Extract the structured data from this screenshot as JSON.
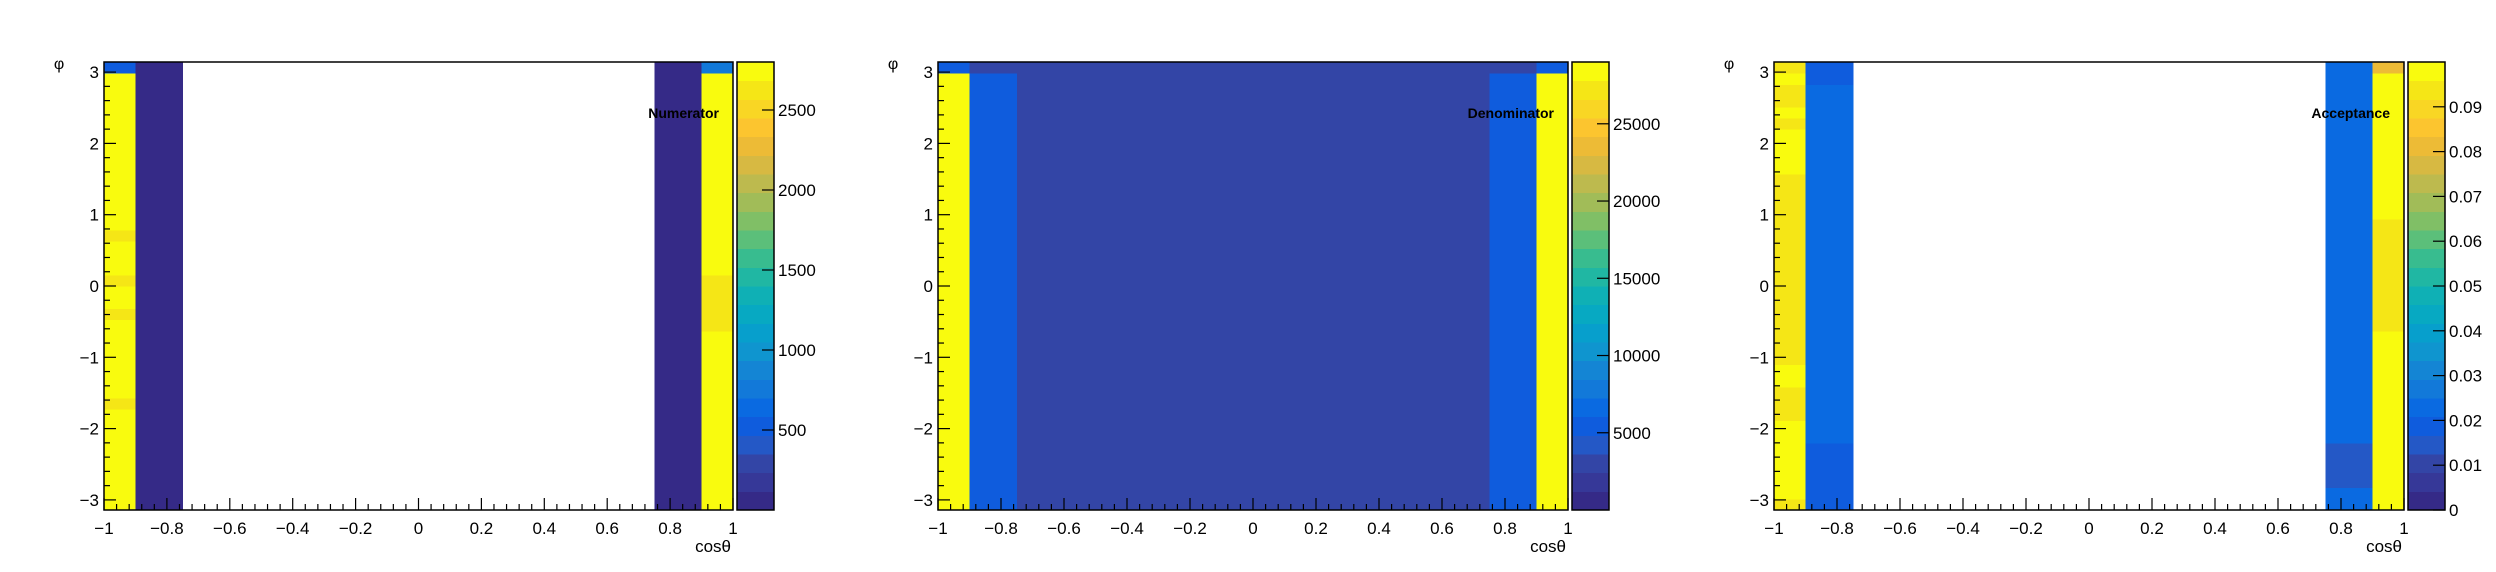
{
  "palette": [
    "#352a87",
    "#363898",
    "#3345a6",
    "#2458c6",
    "#0f5cdd",
    "#0a6ae1",
    "#1279d9",
    "#1485d4",
    "#0f95cf",
    "#079fcc",
    "#07a9c2",
    "#0fb0b5",
    "#20b7a3",
    "#38bc8f",
    "#5bbf7a",
    "#80bf66",
    "#a1bc58",
    "#bdba4e",
    "#d7b942",
    "#edbb36",
    "#fcc52f",
    "#f9d624",
    "#f5e616",
    "#f9fb0e"
  ],
  "chart_data": [
    {
      "type": "heatmap",
      "title": "Numerator",
      "xlabel": "cosθ",
      "ylabel": "φ",
      "xlim": [
        -1,
        1
      ],
      "ylim": [
        -3.14159,
        3.14159
      ],
      "x_ticks": [
        "−1",
        "−0.8",
        "−0.6",
        "−0.4",
        "−0.2",
        "0",
        "0.2",
        "0.4",
        "0.6",
        "0.8",
        "1"
      ],
      "y_ticks": [
        "−3",
        "−2",
        "−1",
        "0",
        "1",
        "2",
        "3"
      ],
      "z_range": [
        0,
        2800
      ],
      "z_ticks": [
        {
          "v": 500,
          "label": "500"
        },
        {
          "v": 1000,
          "label": "1000"
        },
        {
          "v": 1500,
          "label": "1500"
        },
        {
          "v": 2000,
          "label": "2000"
        },
        {
          "v": 2500,
          "label": "2500"
        }
      ],
      "columns": [
        {
          "x0": -1.0,
          "x1": -0.9,
          "values": [
            2700,
            2800,
            2800,
            2800,
            2700,
            2700,
            2800,
            2700,
            2700,
            2600,
            2700,
            2700,
            2700,
            2700,
            2700,
            2700,
            2700,
            2600,
            2700,
            2700,
            2650,
            2700,
            2700,
            2700,
            2600,
            2700,
            2700,
            2700,
            2700,
            2700,
            2800,
            2800,
            2800,
            2750,
            2700,
            2800,
            2700,
            2750,
            2800,
            500
          ]
        },
        {
          "x0": -0.9,
          "x1": -0.75,
          "values": [
            100,
            100,
            100,
            100,
            100,
            100,
            100,
            100,
            100,
            100,
            100,
            100,
            100,
            100,
            100,
            100,
            100,
            100,
            100,
            100,
            100,
            100,
            100,
            100,
            100,
            100,
            100,
            100,
            100,
            100,
            100,
            100,
            100,
            100,
            100,
            100,
            100,
            100,
            100,
            100
          ]
        },
        {
          "x0": 0.75,
          "x1": 0.9,
          "values": [
            100,
            100,
            100,
            100,
            100,
            100,
            100,
            100,
            100,
            100,
            100,
            100,
            100,
            100,
            100,
            100,
            100,
            100,
            100,
            100,
            100,
            100,
            100,
            100,
            100,
            100,
            100,
            100,
            100,
            100,
            100,
            100,
            100,
            100,
            100,
            100,
            100,
            100,
            100,
            100
          ]
        },
        {
          "x0": 0.9,
          "x1": 1.0,
          "values": [
            2800,
            2800,
            2800,
            2800,
            2800,
            2800,
            2800,
            2800,
            2800,
            2800,
            2800,
            2800,
            2800,
            2800,
            2800,
            2800,
            2650,
            2650,
            2650,
            2650,
            2650,
            2700,
            2700,
            2700,
            2800,
            2800,
            2800,
            2800,
            2800,
            2800,
            2800,
            2800,
            2800,
            2800,
            2800,
            2800,
            2800,
            2800,
            2800,
            700
          ]
        }
      ]
    },
    {
      "type": "heatmap",
      "title": "Denominator",
      "xlabel": "cosθ",
      "ylabel": "φ",
      "xlim": [
        -1,
        1
      ],
      "ylim": [
        -3.14159,
        3.14159
      ],
      "x_ticks": [
        "−1",
        "−0.8",
        "−0.6",
        "−0.4",
        "−0.2",
        "0",
        "0.2",
        "0.4",
        "0.6",
        "0.8",
        "1"
      ],
      "y_ticks": [
        "−3",
        "−2",
        "−1",
        "0",
        "1",
        "2",
        "3"
      ],
      "z_range": [
        0,
        29000
      ],
      "z_ticks": [
        {
          "v": 5000,
          "label": "5000"
        },
        {
          "v": 10000,
          "label": "10000"
        },
        {
          "v": 15000,
          "label": "15000"
        },
        {
          "v": 20000,
          "label": "20000"
        },
        {
          "v": 25000,
          "label": "25000"
        }
      ],
      "columns": [
        {
          "x0": -1.0,
          "x1": -0.9,
          "values": [
            29000,
            29000,
            29000,
            29000,
            29000,
            29000,
            29000,
            29000,
            29000,
            29000,
            29000,
            29000,
            29000,
            29000,
            29000,
            29000,
            29000,
            29000,
            29000,
            29000,
            29000,
            29000,
            29000,
            29000,
            29000,
            29000,
            29000,
            29000,
            29000,
            29000,
            29000,
            29000,
            29000,
            29000,
            29000,
            29000,
            29000,
            29000,
            29000,
            6000
          ]
        },
        {
          "x0": -0.9,
          "x1": -0.75,
          "values": [
            6000,
            6000,
            6000,
            6000,
            6000,
            6000,
            6000,
            6000,
            6000,
            6000,
            6000,
            6000,
            6000,
            6000,
            6000,
            6000,
            6000,
            6000,
            6000,
            6000,
            6000,
            6000,
            6000,
            6000,
            6000,
            6000,
            6000,
            6000,
            6000,
            6000,
            6000,
            6000,
            6000,
            6000,
            6000,
            6000,
            6000,
            6000,
            6000,
            2500
          ]
        },
        {
          "x0": -0.75,
          "x1": 0.75,
          "values": [
            2500,
            2500,
            2500,
            2500,
            2500,
            2500,
            2500,
            2500,
            2500,
            2500,
            2500,
            2500,
            2500,
            2500,
            2500,
            2500,
            2500,
            2500,
            2500,
            2500,
            2500,
            2500,
            2500,
            2500,
            2500,
            2500,
            2500,
            2500,
            2500,
            2500,
            2500,
            2500,
            2500,
            2500,
            2500,
            2500,
            2500,
            2500,
            2500,
            2500
          ]
        },
        {
          "x0": 0.75,
          "x1": 0.9,
          "values": [
            6000,
            6000,
            6000,
            6000,
            6000,
            6000,
            6000,
            6000,
            6000,
            6000,
            6000,
            6000,
            6000,
            6000,
            6000,
            6000,
            6000,
            6000,
            6000,
            6000,
            6000,
            6000,
            6000,
            6000,
            6000,
            6000,
            6000,
            6000,
            6000,
            6000,
            6000,
            6000,
            6000,
            6000,
            6000,
            6000,
            6000,
            6000,
            6000,
            2500
          ]
        },
        {
          "x0": 0.9,
          "x1": 1.0,
          "values": [
            29000,
            29000,
            29000,
            29000,
            29000,
            29000,
            29000,
            29000,
            29000,
            29000,
            29000,
            29000,
            29000,
            29000,
            29000,
            29000,
            29000,
            29000,
            29000,
            29000,
            29000,
            29000,
            29000,
            29000,
            29000,
            29000,
            29000,
            29000,
            29000,
            29000,
            29000,
            29000,
            29000,
            29000,
            29000,
            29000,
            29000,
            29000,
            29000,
            6000
          ]
        }
      ]
    },
    {
      "type": "heatmap",
      "title": "Acceptance",
      "xlabel": "cosθ",
      "ylabel": "φ",
      "xlim": [
        -1,
        1
      ],
      "ylim": [
        -3.14159,
        3.14159
      ],
      "x_ticks": [
        "−1",
        "−0.8",
        "−0.6",
        "−0.4",
        "−0.2",
        "0",
        "0.2",
        "0.4",
        "0.6",
        "0.8",
        "1"
      ],
      "y_ticks": [
        "−3",
        "−2",
        "−1",
        "0",
        "1",
        "2",
        "3"
      ],
      "z_range": [
        0,
        0.1
      ],
      "z_ticks": [
        {
          "v": 0,
          "label": "0"
        },
        {
          "v": 0.01,
          "label": "0.01"
        },
        {
          "v": 0.02,
          "label": "0.02"
        },
        {
          "v": 0.03,
          "label": "0.03"
        },
        {
          "v": 0.04,
          "label": "0.04"
        },
        {
          "v": 0.05,
          "label": "0.05"
        },
        {
          "v": 0.06,
          "label": "0.06"
        },
        {
          "v": 0.07,
          "label": "0.07"
        },
        {
          "v": 0.08,
          "label": "0.08"
        },
        {
          "v": 0.09,
          "label": "0.09"
        }
      ],
      "columns": [
        {
          "x0": -1.0,
          "x1": -0.9,
          "values": [
            0.095,
            0.097,
            0.097,
            0.097,
            0.096,
            0.096,
            0.097,
            0.096,
            0.095,
            0.094,
            0.095,
            0.096,
            0.096,
            0.095,
            0.095,
            0.095,
            0.094,
            0.093,
            0.094,
            0.094,
            0.094,
            0.094,
            0.094,
            0.094,
            0.093,
            0.094,
            0.094,
            0.094,
            0.095,
            0.095,
            0.096,
            0.096,
            0.096,
            0.096,
            0.095,
            0.096,
            0.095,
            0.095,
            0.096,
            0.095
          ]
        },
        {
          "x0": -0.9,
          "x1": -0.75,
          "values": [
            0.02,
            0.02,
            0.02,
            0.02,
            0.02,
            0.02,
            0.022,
            0.022,
            0.022,
            0.022,
            0.022,
            0.022,
            0.024,
            0.024,
            0.024,
            0.024,
            0.022,
            0.022,
            0.022,
            0.022,
            0.024,
            0.024,
            0.024,
            0.024,
            0.022,
            0.022,
            0.022,
            0.022,
            0.024,
            0.024,
            0.024,
            0.024,
            0.022,
            0.022,
            0.022,
            0.022,
            0.022,
            0.022,
            0.02,
            0.02
          ]
        },
        {
          "x0": 0.75,
          "x1": 0.9,
          "values": [
            0.024,
            0.024,
            0.016,
            0.016,
            0.016,
            0.016,
            0.024,
            0.024,
            0.024,
            0.024,
            0.024,
            0.024,
            0.024,
            0.024,
            0.024,
            0.024,
            0.024,
            0.024,
            0.024,
            0.024,
            0.024,
            0.024,
            0.024,
            0.024,
            0.024,
            0.024,
            0.024,
            0.024,
            0.024,
            0.024,
            0.024,
            0.024,
            0.024,
            0.024,
            0.024,
            0.024,
            0.024,
            0.024,
            0.024,
            0.024
          ]
        },
        {
          "x0": 0.9,
          "x1": 1.0,
          "values": [
            0.099,
            0.099,
            0.099,
            0.099,
            0.099,
            0.099,
            0.099,
            0.099,
            0.099,
            0.099,
            0.099,
            0.099,
            0.099,
            0.099,
            0.099,
            0.099,
            0.094,
            0.094,
            0.094,
            0.094,
            0.094,
            0.094,
            0.094,
            0.094,
            0.094,
            0.094,
            0.099,
            0.099,
            0.099,
            0.099,
            0.099,
            0.099,
            0.099,
            0.099,
            0.099,
            0.099,
            0.099,
            0.099,
            0.099,
            0.08
          ]
        }
      ]
    }
  ]
}
